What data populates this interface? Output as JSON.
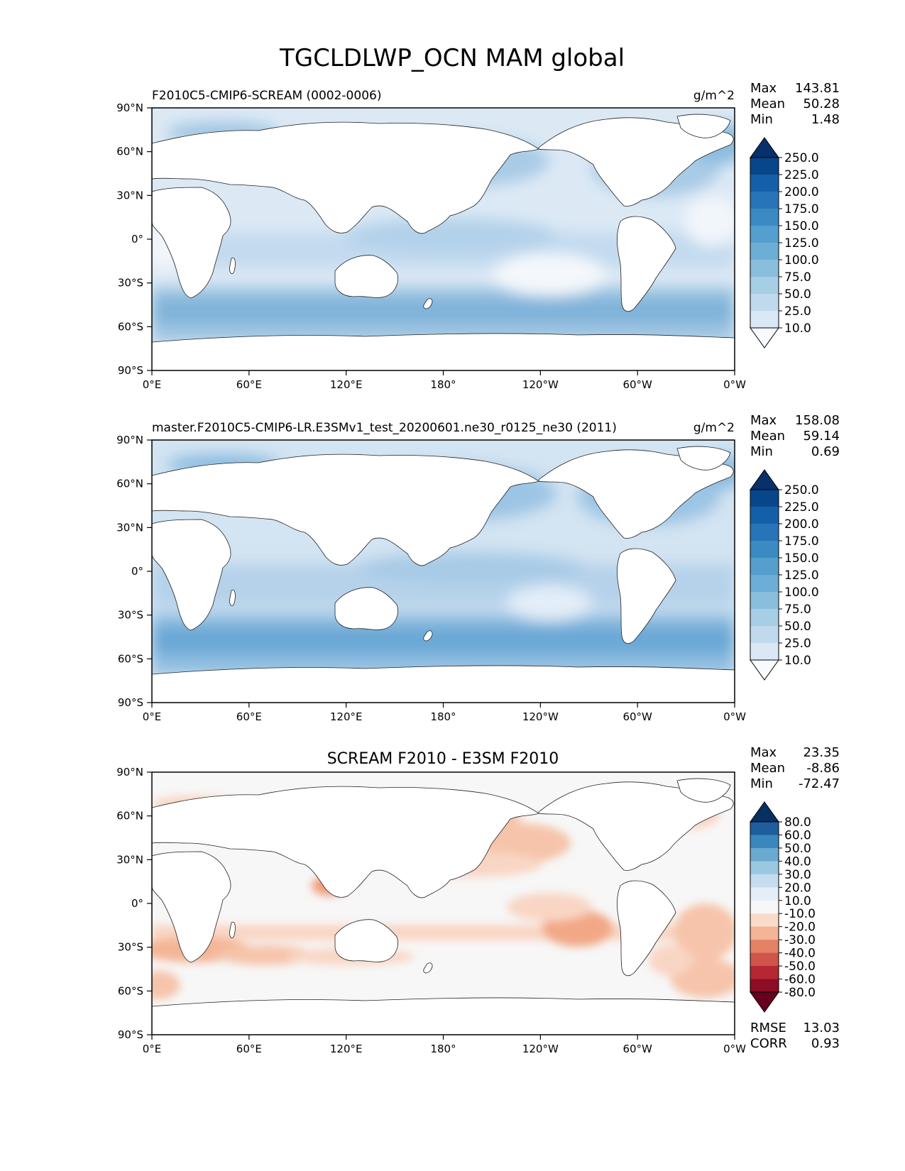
{
  "figure": {
    "title": "TGCLDLWP_OCN MAM global"
  },
  "axes": {
    "lat_ticks": [
      "90°N",
      "60°N",
      "30°N",
      "0°",
      "30°S",
      "60°S",
      "90°S"
    ],
    "lon_ticks": [
      "0°E",
      "60°E",
      "120°E",
      "180°",
      "120°W",
      "60°W",
      "0°W"
    ]
  },
  "panels": [
    {
      "id": "test",
      "title_left": "F2010C5-CMIP6-SCREAM (0002-0006)",
      "title_center": "",
      "units": "g/m^2",
      "stats": [
        {
          "label": "Max",
          "value": "143.81"
        },
        {
          "label": "Mean",
          "value": "50.28"
        },
        {
          "label": "Min",
          "value": "1.48"
        }
      ],
      "colorbar": {
        "labels": [
          "250.0",
          "225.0",
          "200.0",
          "175.0",
          "150.0",
          "125.0",
          "100.0",
          "75.0",
          "50.0",
          "25.0",
          "10.0"
        ],
        "colors": [
          "#08306b",
          "#08468c",
          "#1460a8",
          "#2874b8",
          "#3b8bc2",
          "#549fcd",
          "#6caed6",
          "#89bedc",
          "#a6cee4",
          "#c1d9ed",
          "#dae7f5",
          "#f7fbff"
        ]
      },
      "footer": []
    },
    {
      "id": "ref",
      "title_left": "master.F2010C5-CMIP6-LR.E3SMv1_test_20200601.ne30_r0125_ne30 (2011)",
      "title_center": "",
      "units": "g/m^2",
      "stats": [
        {
          "label": "Max",
          "value": "158.08"
        },
        {
          "label": "Mean",
          "value": "59.14"
        },
        {
          "label": "Min",
          "value": "0.69"
        }
      ],
      "colorbar": {
        "labels": [
          "250.0",
          "225.0",
          "200.0",
          "175.0",
          "150.0",
          "125.0",
          "100.0",
          "75.0",
          "50.0",
          "25.0",
          "10.0"
        ],
        "colors": [
          "#08306b",
          "#08468c",
          "#1460a8",
          "#2874b8",
          "#3b8bc2",
          "#549fcd",
          "#6caed6",
          "#89bedc",
          "#a6cee4",
          "#c1d9ed",
          "#dae7f5",
          "#f7fbff"
        ]
      },
      "footer": []
    },
    {
      "id": "diff",
      "title_left": "",
      "title_center": "SCREAM F2010 - E3SM F2010",
      "units": "",
      "stats": [
        {
          "label": "Max",
          "value": "23.35"
        },
        {
          "label": "Mean",
          "value": "-8.86"
        },
        {
          "label": "Min",
          "value": "-72.47"
        }
      ],
      "colorbar": {
        "labels": [
          "80.0",
          "60.0",
          "50.0",
          "40.0",
          "30.0",
          "20.0",
          "10.0",
          "-10.0",
          "-20.0",
          "-30.0",
          "-40.0",
          "-50.0",
          "-60.0",
          "-80.0"
        ],
        "colors": [
          "#053061",
          "#1e5e9e",
          "#3a87bd",
          "#6aa9d0",
          "#9ac8e0",
          "#c4dced",
          "#e4eef6",
          "#f7f7f7",
          "#fadbc9",
          "#f4b596",
          "#e58266",
          "#d05548",
          "#b62733",
          "#8c0d25",
          "#67001f"
        ]
      },
      "footer": [
        {
          "label": "RMSE",
          "value": "13.03"
        },
        {
          "label": "CORR",
          "value": "0.93"
        }
      ]
    }
  ]
}
